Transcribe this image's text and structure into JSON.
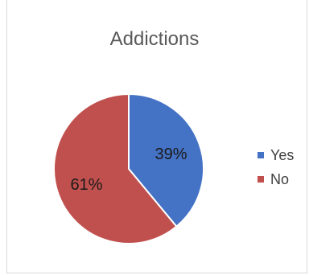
{
  "chart_data": {
    "type": "pie",
    "title": "Addictions",
    "categories": [
      "Yes",
      "No"
    ],
    "values": [
      39,
      61
    ],
    "data_labels": [
      "39%",
      "61%"
    ],
    "colors": [
      "#4472c4",
      "#c0504d"
    ],
    "legend_position": "right"
  }
}
